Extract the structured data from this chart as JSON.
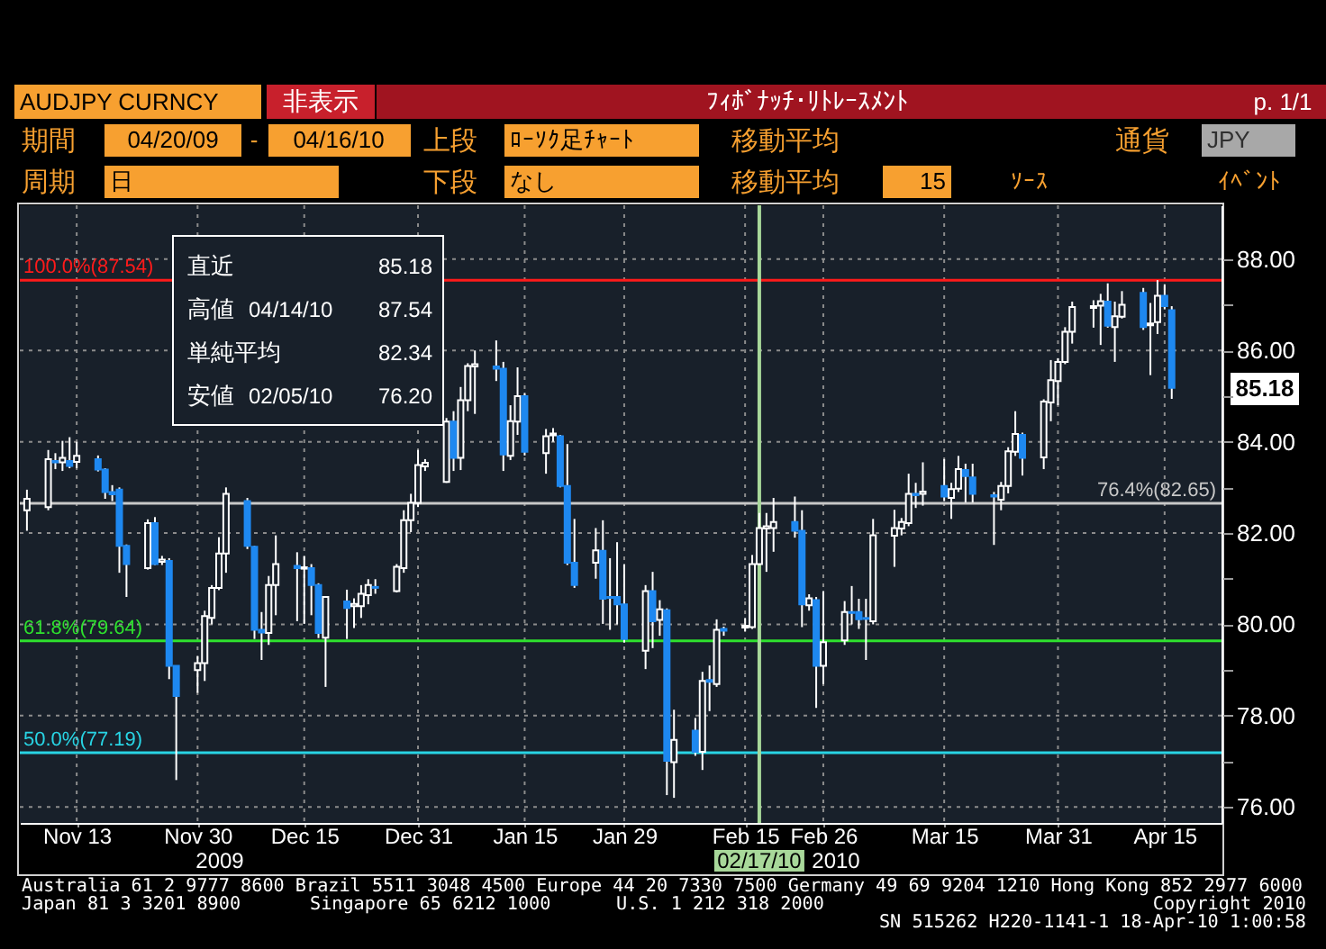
{
  "chart_data": {
    "type": "candlestick",
    "title": "ﾌｨﾎﾞﾅｯﾁ･ﾘﾄﾚｰｽﾒﾝﾄ",
    "x": [
      "2009-11-06",
      "2009-11-09",
      "2009-11-10",
      "2009-11-11",
      "2009-11-12",
      "2009-11-13",
      "2009-11-16",
      "2009-11-17",
      "2009-11-18",
      "2009-11-19",
      "2009-11-20",
      "2009-11-23",
      "2009-11-24",
      "2009-11-25",
      "2009-11-26",
      "2009-11-27",
      "2009-11-30",
      "2009-12-01",
      "2009-12-02",
      "2009-12-03",
      "2009-12-04",
      "2009-12-07",
      "2009-12-08",
      "2009-12-09",
      "2009-12-10",
      "2009-12-11",
      "2009-12-14",
      "2009-12-15",
      "2009-12-16",
      "2009-12-17",
      "2009-12-18",
      "2009-12-21",
      "2009-12-22",
      "2009-12-23",
      "2009-12-24",
      "2009-12-25",
      "2009-12-28",
      "2009-12-29",
      "2009-12-30",
      "2009-12-31",
      "2010-01-01",
      "2010-01-04",
      "2010-01-05",
      "2010-01-06",
      "2010-01-07",
      "2010-01-08",
      "2010-01-11",
      "2010-01-12",
      "2010-01-13",
      "2010-01-14",
      "2010-01-15",
      "2010-01-18",
      "2010-01-19",
      "2010-01-20",
      "2010-01-21",
      "2010-01-22",
      "2010-01-25",
      "2010-01-26",
      "2010-01-27",
      "2010-01-28",
      "2010-01-29",
      "2010-02-01",
      "2010-02-02",
      "2010-02-03",
      "2010-02-04",
      "2010-02-05",
      "2010-02-08",
      "2010-02-09",
      "2010-02-10",
      "2010-02-11",
      "2010-02-12",
      "2010-02-15",
      "2010-02-16",
      "2010-02-17",
      "2010-02-18",
      "2010-02-19",
      "2010-02-22",
      "2010-02-23",
      "2010-02-24",
      "2010-02-25",
      "2010-02-26",
      "2010-03-01",
      "2010-03-02",
      "2010-03-03",
      "2010-03-04",
      "2010-03-05",
      "2010-03-08",
      "2010-03-09",
      "2010-03-10",
      "2010-03-11",
      "2010-03-12",
      "2010-03-15",
      "2010-03-16",
      "2010-03-17",
      "2010-03-18",
      "2010-03-19",
      "2010-03-22",
      "2010-03-23",
      "2010-03-24",
      "2010-03-25",
      "2010-03-26",
      "2010-03-29",
      "2010-03-30",
      "2010-03-31",
      "2010-04-01",
      "2010-04-02",
      "2010-04-05",
      "2010-04-06",
      "2010-04-07",
      "2010-04-08",
      "2010-04-09",
      "2010-04-12",
      "2010-04-13",
      "2010-04-14",
      "2010-04-15",
      "2010-04-16"
    ],
    "ohlc": [
      [
        82.5,
        82.95,
        82.05,
        82.75
      ],
      [
        82.57,
        83.82,
        82.5,
        83.62
      ],
      [
        83.58,
        83.75,
        83.4,
        83.55
      ],
      [
        83.55,
        84.02,
        83.36,
        83.65
      ],
      [
        83.58,
        84.1,
        83.42,
        83.47
      ],
      [
        83.56,
        84.0,
        83.42,
        83.69
      ],
      [
        83.62,
        83.7,
        83.35,
        83.39
      ],
      [
        83.39,
        83.42,
        82.75,
        82.9
      ],
      [
        82.9,
        83.05,
        82.7,
        82.85
      ],
      [
        82.95,
        83.0,
        81.13,
        81.72
      ],
      [
        81.72,
        81.75,
        80.6,
        81.32
      ],
      [
        81.23,
        82.3,
        81.2,
        82.22
      ],
      [
        82.22,
        82.35,
        81.3,
        81.32
      ],
      [
        81.37,
        81.5,
        81.3,
        81.42
      ],
      [
        81.39,
        81.45,
        78.8,
        79.09
      ],
      [
        79.09,
        79.1,
        76.59,
        78.43
      ],
      [
        79.0,
        79.3,
        78.5,
        79.15
      ],
      [
        79.15,
        80.3,
        78.76,
        80.18
      ],
      [
        80.14,
        80.86,
        80.0,
        80.8
      ],
      [
        80.8,
        81.91,
        80.75,
        81.55
      ],
      [
        81.55,
        83.0,
        81.13,
        82.86
      ],
      [
        82.7,
        82.77,
        81.65,
        81.72
      ],
      [
        81.7,
        81.72,
        79.68,
        79.88
      ],
      [
        79.88,
        80.27,
        79.22,
        79.82
      ],
      [
        79.81,
        81.06,
        79.55,
        80.86
      ],
      [
        80.86,
        81.95,
        80.2,
        81.32
      ],
      [
        81.28,
        81.58,
        80.07,
        81.23
      ],
      [
        81.22,
        81.5,
        80.01,
        81.25
      ],
      [
        81.23,
        81.32,
        80.2,
        80.86
      ],
      [
        80.86,
        80.9,
        79.7,
        79.81
      ],
      [
        79.71,
        80.62,
        78.63,
        80.6
      ],
      [
        80.5,
        80.76,
        79.68,
        80.36
      ],
      [
        80.4,
        80.57,
        79.92,
        80.45
      ],
      [
        80.4,
        80.86,
        80.14,
        80.67
      ],
      [
        80.64,
        80.99,
        80.44,
        80.86
      ],
      [
        80.82,
        80.99,
        80.67,
        80.8
      ],
      [
        80.73,
        81.32,
        80.7,
        81.26
      ],
      [
        81.23,
        82.5,
        81.13,
        82.28
      ],
      [
        82.28,
        82.86,
        82.02,
        82.66
      ],
      [
        82.66,
        83.82,
        82.57,
        83.49
      ],
      [
        83.46,
        83.62,
        83.36,
        83.54
      ],
      [
        83.12,
        84.52,
        83.1,
        84.44
      ],
      [
        84.44,
        84.67,
        83.36,
        83.65
      ],
      [
        83.65,
        85.2,
        83.38,
        84.91
      ],
      [
        84.91,
        85.72,
        84.67,
        85.66
      ],
      [
        85.65,
        86.0,
        84.61,
        85.7
      ],
      [
        85.65,
        86.22,
        85.33,
        85.6
      ],
      [
        85.6,
        85.75,
        83.36,
        83.72
      ],
      [
        83.69,
        84.8,
        83.6,
        84.45
      ],
      [
        84.44,
        85.63,
        84.15,
        85.0
      ],
      [
        85.0,
        85.07,
        83.7,
        83.78
      ],
      [
        83.75,
        84.28,
        83.3,
        84.12
      ],
      [
        84.14,
        84.3,
        84.0,
        84.18
      ],
      [
        84.12,
        84.15,
        83.0,
        83.03
      ],
      [
        83.03,
        83.95,
        81.3,
        81.35
      ],
      [
        81.35,
        82.31,
        80.8,
        80.86
      ],
      [
        81.35,
        82.11,
        81.0,
        81.62
      ],
      [
        81.61,
        82.28,
        80.01,
        80.56
      ],
      [
        80.6,
        81.45,
        79.88,
        80.58
      ],
      [
        80.6,
        81.8,
        80.0,
        80.44
      ],
      [
        80.44,
        81.32,
        79.6,
        79.68
      ],
      [
        79.42,
        80.86,
        79.02,
        80.73
      ],
      [
        80.73,
        81.15,
        79.48,
        80.07
      ],
      [
        80.1,
        80.53,
        79.75,
        80.33
      ],
      [
        80.31,
        80.35,
        76.26,
        77.01
      ],
      [
        76.98,
        78.13,
        76.2,
        77.47
      ],
      [
        77.67,
        77.95,
        77.12,
        77.21
      ],
      [
        77.21,
        78.96,
        76.81,
        78.76
      ],
      [
        78.78,
        79.1,
        78.1,
        78.74
      ],
      [
        78.69,
        80.11,
        78.63,
        79.88
      ],
      [
        79.9,
        79.95,
        79.75,
        79.86
      ],
      [
        79.93,
        80.14,
        79.85,
        79.97
      ],
      [
        79.94,
        81.52,
        79.9,
        81.32
      ],
      [
        81.32,
        82.44,
        81.3,
        82.11
      ],
      [
        82.1,
        82.44,
        81.15,
        82.15
      ],
      [
        82.11,
        82.77,
        81.59,
        82.24
      ],
      [
        82.24,
        82.8,
        81.9,
        82.05
      ],
      [
        82.05,
        82.5,
        79.94,
        80.44
      ],
      [
        80.42,
        80.66,
        80.3,
        80.57
      ],
      [
        80.53,
        80.6,
        78.17,
        79.09
      ],
      [
        79.09,
        80.73,
        78.69,
        79.61
      ],
      [
        79.65,
        80.51,
        79.55,
        80.27
      ],
      [
        80.27,
        80.84,
        80.0,
        80.25
      ],
      [
        80.27,
        80.56,
        79.9,
        80.11
      ],
      [
        80.14,
        80.56,
        79.22,
        80.12
      ],
      [
        80.07,
        82.31,
        80.0,
        81.95
      ],
      [
        81.94,
        82.51,
        81.26,
        82.11
      ],
      [
        82.1,
        82.33,
        81.95,
        82.24
      ],
      [
        82.22,
        83.3,
        82.15,
        82.86
      ],
      [
        82.86,
        83.1,
        82.55,
        82.83
      ],
      [
        82.86,
        83.55,
        82.6,
        82.91
      ],
      [
        83.03,
        83.62,
        82.7,
        82.8
      ],
      [
        82.77,
        83.1,
        82.31,
        82.96
      ],
      [
        82.97,
        83.69,
        82.9,
        83.4
      ],
      [
        83.38,
        83.52,
        82.67,
        83.25
      ],
      [
        83.22,
        83.52,
        82.67,
        82.86
      ],
      [
        82.83,
        82.9,
        81.74,
        82.8
      ],
      [
        82.73,
        83.12,
        82.5,
        83.03
      ],
      [
        83.03,
        83.88,
        82.87,
        83.79
      ],
      [
        83.78,
        84.67,
        83.69,
        84.17
      ],
      [
        84.15,
        84.2,
        83.26,
        83.65
      ],
      [
        83.66,
        84.93,
        83.4,
        84.88
      ],
      [
        84.86,
        85.79,
        84.45,
        85.35
      ],
      [
        85.33,
        85.83,
        84.8,
        85.75
      ],
      [
        85.75,
        86.51,
        85.7,
        86.41
      ],
      [
        86.41,
        87.07,
        86.15,
        86.95
      ],
      [
        86.93,
        87.1,
        86.5,
        86.97
      ],
      [
        86.98,
        87.24,
        86.12,
        87.08
      ],
      [
        87.07,
        87.47,
        86.5,
        86.54
      ],
      [
        86.51,
        87.07,
        85.75,
        86.75
      ],
      [
        86.74,
        87.3,
        86.7,
        87.0
      ],
      [
        87.26,
        87.37,
        86.45,
        86.51
      ],
      [
        86.55,
        87.04,
        85.46,
        86.59
      ],
      [
        86.62,
        87.54,
        86.36,
        87.2
      ],
      [
        87.2,
        87.45,
        86.9,
        86.97
      ],
      [
        86.88,
        86.97,
        84.94,
        85.18
      ]
    ],
    "colors": [
      "#ffffff",
      "#ffffff",
      "#1e88f0",
      "#ffffff",
      "#1e88f0",
      "#ffffff",
      "#1e88f0",
      "#1e88f0",
      "#1e88f0",
      "#1e88f0",
      "#1e88f0",
      "#ffffff",
      "#1e88f0",
      "#ffffff",
      "#1e88f0",
      "#1e88f0",
      "#ffffff",
      "#ffffff",
      "#ffffff",
      "#ffffff",
      "#ffffff",
      "#1e88f0",
      "#1e88f0",
      "#1e88f0",
      "#ffffff",
      "#ffffff",
      "#1e88f0",
      "#ffffff",
      "#1e88f0",
      "#1e88f0",
      "#ffffff",
      "#1e88f0",
      "#ffffff",
      "#ffffff",
      "#ffffff",
      "#1e88f0",
      "#ffffff",
      "#ffffff",
      "#ffffff",
      "#ffffff",
      "#ffffff",
      "#ffffff",
      "#1e88f0",
      "#ffffff",
      "#ffffff",
      "#ffffff",
      "#1e88f0",
      "#1e88f0",
      "#ffffff",
      "#ffffff",
      "#1e88f0",
      "#ffffff",
      "#ffffff",
      "#1e88f0",
      "#1e88f0",
      "#1e88f0",
      "#ffffff",
      "#1e88f0",
      "#1e88f0",
      "#1e88f0",
      "#1e88f0",
      "#ffffff",
      "#1e88f0",
      "#ffffff",
      "#1e88f0",
      "#ffffff",
      "#1e88f0",
      "#ffffff",
      "#1e88f0",
      "#ffffff",
      "#1e88f0",
      "#ffffff",
      "#ffffff",
      "#ffffff",
      "#ffffff",
      "#ffffff",
      "#1e88f0",
      "#1e88f0",
      "#ffffff",
      "#1e88f0",
      "#ffffff",
      "#ffffff",
      "#1e88f0",
      "#1e88f0",
      "#1e88f0",
      "#ffffff",
      "#ffffff",
      "#ffffff",
      "#ffffff",
      "#1e88f0",
      "#ffffff",
      "#1e88f0",
      "#ffffff",
      "#ffffff",
      "#1e88f0",
      "#1e88f0",
      "#1e88f0",
      "#ffffff",
      "#ffffff",
      "#ffffff",
      "#1e88f0",
      "#ffffff",
      "#ffffff",
      "#ffffff",
      "#ffffff",
      "#ffffff",
      "#ffffff",
      "#ffffff",
      "#1e88f0",
      "#ffffff",
      "#ffffff",
      "#1e88f0",
      "#ffffff",
      "#ffffff",
      "#1e88f0",
      "#1e88f0"
    ],
    "xlim": [
      "2009-11-05",
      "2010-04-23"
    ],
    "ylim": [
      75.65,
      89.18
    ],
    "yticks": [
      {
        "value": 76,
        "label": "76.00"
      },
      {
        "value": 77,
        "label": null
      },
      {
        "value": 78,
        "label": "78.00"
      },
      {
        "value": 79,
        "label": null
      },
      {
        "value": 80,
        "label": "80.00"
      },
      {
        "value": 81,
        "label": null
      },
      {
        "value": 82,
        "label": "82.00"
      },
      {
        "value": 83,
        "label": null
      },
      {
        "value": 84,
        "label": "84.00"
      },
      {
        "value": 85,
        "label": null
      },
      {
        "value": 86,
        "label": "86.00"
      },
      {
        "value": 87,
        "label": null
      },
      {
        "value": 88,
        "label": "88.00"
      }
    ],
    "xticks": [
      {
        "value": "2009-11-13",
        "label": "Nov 13"
      },
      {
        "value": "2009-11-30",
        "label": "Nov 30"
      },
      {
        "value": "2009-12-15",
        "label": "Dec 15"
      },
      {
        "value": "2009-12-31",
        "label": "Dec 31"
      },
      {
        "value": "2010-01-15",
        "label": "Jan 15"
      },
      {
        "value": "2010-01-29",
        "label": "Jan 29"
      },
      {
        "value": "2010-02-15",
        "label": "Feb 15"
      },
      {
        "value": "2010-02-26",
        "label": "Feb 26"
      },
      {
        "value": "2010-03-15",
        "label": "Mar 15"
      },
      {
        "value": "2010-03-31",
        "label": "Mar 31"
      },
      {
        "value": "2010-04-15",
        "label": "Apr 15"
      }
    ],
    "grid": true,
    "ref_lines": [
      {
        "axis": "y",
        "value": 87.54,
        "label": "100.0%(87.54)",
        "color": "#ff1a1a"
      },
      {
        "axis": "y",
        "value": 82.65,
        "label": "76.4%(82.65)",
        "color": "#c8c8c8"
      },
      {
        "axis": "y",
        "value": 79.64,
        "label": "61.8%(79.64)",
        "color": "#2ee02e"
      },
      {
        "axis": "y",
        "value": 77.19,
        "label": "50.0%(77.19)",
        "color": "#28d4e4"
      },
      {
        "axis": "x",
        "value": "2010-02-17",
        "label": "02/17/10",
        "color": "#a8d89a"
      }
    ],
    "annotations": [
      "AUDJPY CURNCY",
      "非表示",
      "p. 1/1",
      "期間",
      "04/20/09",
      "-",
      "04/16/10",
      "上段",
      "ﾛｰｿｸ足ﾁｬｰﾄ",
      "移動平均",
      "通貨",
      "JPY",
      "周期",
      "日",
      "下段",
      "なし",
      "移動平均",
      "15",
      "ｿｰｽ",
      "ｲﾍﾞﾝﾄ",
      "直近",
      "85.18",
      "高値",
      "04/14/10",
      "87.54",
      "単純平均",
      "82.34",
      "安値",
      "02/05/10",
      "76.20",
      "2009",
      "2010",
      "Australia 61 2 9777 8600 Brazil 5511 3048 4500 Europe 44 20 7330 7500 Germany 49 69 9204 1210 Hong Kong 852 2977 6000",
      "Japan 81 3 3201 8900",
      "Singapore 65 6212 1000",
      "U.S. 1 212 318 2000",
      "Copyright 2010",
      "SN 515262 H220-1141-1 18-Apr-10 1:00:58",
      "85.18"
    ]
  }
}
